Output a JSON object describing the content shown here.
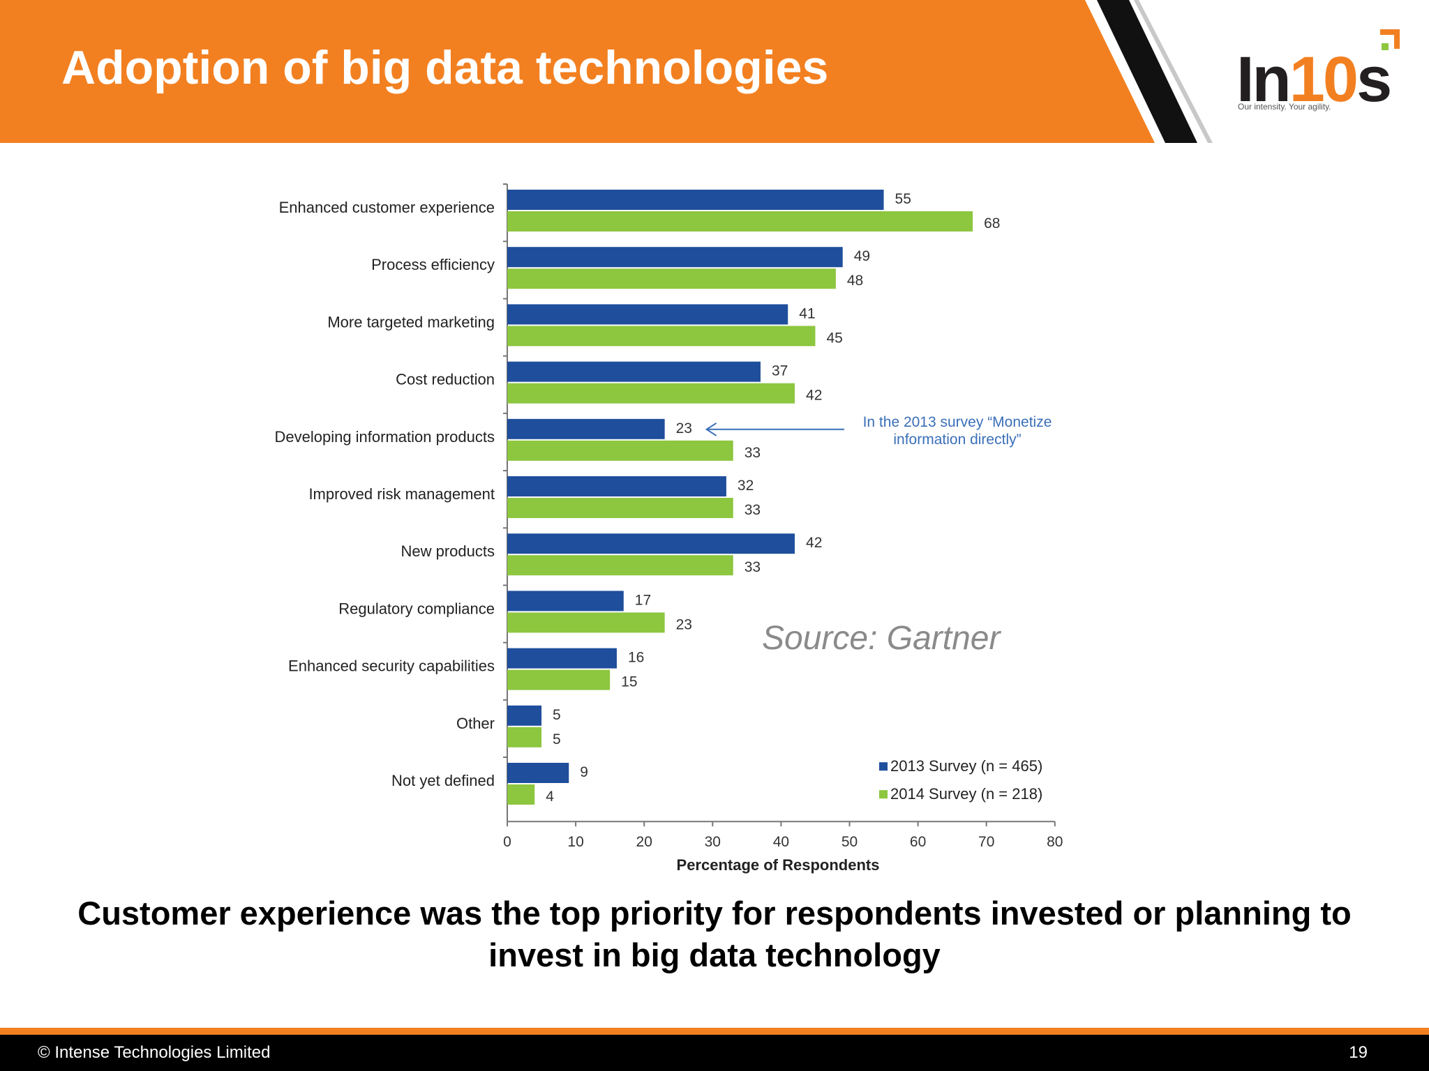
{
  "slide": {
    "title": "Adoption of big data technologies",
    "takeaway": "Customer experience was the top priority for respondents invested or planning to invest in big data technology",
    "source": "Source: Gartner",
    "footer": {
      "copyright": "© Intense Technologies Limited",
      "page": "19"
    },
    "logo": {
      "name_part1": "In",
      "name_part2": "10",
      "name_part3": "s",
      "tagline": "Our intensity. Your agility."
    }
  },
  "colors": {
    "header_orange": "#f28021",
    "series_2013": "#1f4e9c",
    "series_2014": "#8dc63f",
    "annotation": "#3a6fb7"
  },
  "chart_data": {
    "type": "bar",
    "orientation": "horizontal",
    "categories": [
      "Enhanced customer experience",
      "Process efficiency",
      "More targeted marketing",
      "Cost reduction",
      "Developing information products",
      "Improved risk management",
      "New products",
      "Regulatory compliance",
      "Enhanced security capabilities",
      "Other",
      "Not yet defined"
    ],
    "series": [
      {
        "name": "2013 Survey (n = 465)",
        "values": [
          55,
          49,
          41,
          37,
          23,
          32,
          42,
          17,
          16,
          5,
          9
        ]
      },
      {
        "name": "2014 Survey (n = 218)",
        "values": [
          68,
          48,
          45,
          42,
          33,
          33,
          33,
          23,
          15,
          5,
          4
        ]
      }
    ],
    "xlabel": "Percentage of Respondents",
    "xlim": [
      0,
      80
    ],
    "xticks": [
      0,
      10,
      20,
      30,
      40,
      50,
      60,
      70,
      80
    ],
    "legend_position": "bottom-right",
    "annotation": {
      "category": "Developing information products",
      "lines": [
        "In the 2013 survey “Monetize",
        "information directly”"
      ]
    }
  }
}
